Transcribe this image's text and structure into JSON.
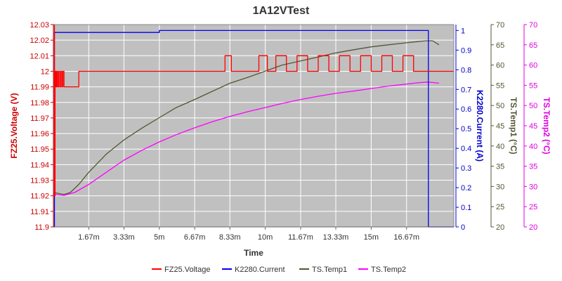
{
  "chart_data": {
    "type": "line",
    "title": "1A12VTest",
    "xlabel": "Time",
    "x_ticks": [
      "1.67m",
      "3.33m",
      "5m",
      "6.67m",
      "8.33m",
      "10m",
      "11.67m",
      "13.33m",
      "15m",
      "16.67m"
    ],
    "x_tick_values": [
      1.67,
      3.33,
      5,
      6.67,
      8.33,
      10,
      11.67,
      13.33,
      15,
      16.67
    ],
    "xlim": [
      0,
      18.9
    ],
    "grid": true,
    "legend_placement": "bottom",
    "plot_background": "#c0c0c0",
    "axes": {
      "voltage": {
        "label": "FZ25.Voltage (V)",
        "side": "left",
        "color": "#cc0000",
        "ylim": [
          11.9,
          12.03
        ],
        "ticks": [
          "11.9",
          "11.91",
          "11.92",
          "11.93",
          "11.94",
          "11.95",
          "11.96",
          "11.97",
          "11.98",
          "11.99",
          "12",
          "12.01",
          "12.02",
          "12.03"
        ],
        "tick_values": [
          11.9,
          11.91,
          11.92,
          11.93,
          11.94,
          11.95,
          11.96,
          11.97,
          11.98,
          11.99,
          12.0,
          12.01,
          12.02,
          12.03
        ]
      },
      "current": {
        "label": "K2280.Current (A)",
        "side": "right",
        "color": "#0000cc",
        "ylim": [
          0,
          1.03
        ],
        "ticks": [
          "0",
          "0.1",
          "0.2",
          "0.3",
          "0.4",
          "0.5",
          "0.6",
          "0.7",
          "0.8",
          "0.9",
          "1"
        ],
        "tick_values": [
          0,
          0.1,
          0.2,
          0.3,
          0.4,
          0.5,
          0.6,
          0.7,
          0.8,
          0.9,
          1.0
        ]
      },
      "temp1": {
        "label": "TS.Temp1 (°C)",
        "side": "right",
        "color": "#555533",
        "ylim": [
          20,
          70
        ],
        "ticks": [
          "20",
          "25",
          "30",
          "35",
          "40",
          "45",
          "50",
          "55",
          "60",
          "65",
          "70"
        ],
        "tick_values": [
          20,
          25,
          30,
          35,
          40,
          45,
          50,
          55,
          60,
          65,
          70
        ]
      },
      "temp2": {
        "label": "TS.Temp2 (°C)",
        "side": "right",
        "color": "#e000e0",
        "ylim": [
          20,
          70
        ],
        "ticks": [
          "20",
          "25",
          "30",
          "35",
          "40",
          "45",
          "50",
          "55",
          "60",
          "65",
          "70"
        ],
        "tick_values": [
          20,
          25,
          30,
          35,
          40,
          45,
          50,
          55,
          60,
          65,
          70
        ]
      }
    },
    "series": [
      {
        "name": "FZ25.Voltage",
        "axis": "voltage",
        "color": "#ff0000",
        "x": [
          0,
          0.05,
          0.05,
          0.08,
          0.08,
          0.12,
          0.12,
          0.16,
          0.16,
          0.2,
          0.2,
          0.25,
          0.25,
          0.3,
          0.3,
          0.35,
          0.35,
          0.4,
          0.4,
          0.45,
          0.45,
          0.5,
          0.5,
          0.55,
          0.55,
          0.6,
          0.6,
          0.65,
          0.65,
          0.7,
          0.7,
          0.75,
          0.75,
          0.8,
          0.8,
          0.85,
          0.85,
          0.9,
          0.9,
          0.95,
          0.95,
          1.0,
          1.0,
          1.05,
          1.05,
          1.1,
          1.1,
          1.2,
          1.2,
          1.3,
          1.3,
          3.4,
          3.4,
          4.2,
          4.2,
          8.1,
          8.1,
          8.4,
          8.4,
          9.7,
          9.7,
          10.1,
          10.1,
          10.5,
          10.5,
          11.0,
          11.0,
          11.5,
          11.5,
          12.0,
          12.0,
          12.5,
          12.5,
          13.0,
          13.0,
          13.5,
          13.5,
          14.0,
          14.0,
          14.5,
          14.5,
          15.0,
          15.0,
          15.5,
          15.5,
          16.0,
          16.0,
          16.5,
          16.5,
          17.0,
          17.0,
          17.5,
          17.5,
          18.9
        ],
        "y": [
          12.03,
          12.03,
          11.92,
          11.92,
          12.0,
          12.0,
          11.99,
          11.99,
          12.0,
          12.0,
          11.99,
          11.99,
          12.0,
          12.0,
          11.99,
          11.99,
          12.0,
          12.0,
          11.99,
          11.99,
          12.0,
          12.0,
          11.99,
          11.99,
          11.99,
          11.99,
          11.99,
          11.99,
          11.99,
          11.99,
          11.99,
          11.99,
          11.99,
          11.99,
          11.99,
          11.99,
          11.99,
          11.99,
          11.99,
          11.99,
          11.99,
          11.99,
          11.99,
          11.99,
          11.99,
          11.99,
          11.99,
          11.99,
          12.0,
          12.0,
          12.0,
          12.0,
          12.0,
          12.0,
          12.0,
          12.0,
          12.01,
          12.01,
          12.0,
          12.0,
          12.01,
          12.01,
          12.0,
          12.0,
          12.01,
          12.01,
          12.0,
          12.0,
          12.01,
          12.01,
          12.0,
          12.0,
          12.01,
          12.01,
          12.0,
          12.0,
          12.01,
          12.01,
          12.0,
          12.0,
          12.01,
          12.01,
          12.0,
          12.0,
          12.01,
          12.01,
          12.0,
          12.0,
          12.01,
          12.01,
          12.0,
          12.0,
          12.0,
          12.0
        ]
      },
      {
        "name": "K2280.Current",
        "axis": "current",
        "color": "#0000ee",
        "x": [
          0,
          0.05,
          0.05,
          0.1,
          0.1,
          0.3,
          0.3,
          1.0,
          1.0,
          2.0,
          2.0,
          3.4,
          3.4,
          5.0,
          5.0,
          6.67,
          6.67,
          8.0,
          8.0,
          11.0,
          11.0,
          14.0,
          14.0,
          17.7,
          17.7,
          18.9
        ],
        "y": [
          0,
          0,
          0.99,
          0.99,
          0.99,
          0.99,
          0.99,
          0.99,
          0.99,
          0.99,
          0.99,
          0.99,
          0.99,
          0.99,
          1.0,
          1.0,
          1.0,
          1.0,
          1.0,
          1.0,
          1.0,
          1.0,
          1.0,
          1.0,
          0,
          0
        ]
      },
      {
        "name": "TS.Temp1",
        "axis": "temp1",
        "color": "#555533",
        "x": [
          0,
          0.5,
          0.8,
          1.2,
          1.67,
          2.5,
          3.33,
          4.2,
          5.0,
          5.8,
          6.67,
          7.5,
          8.33,
          9.2,
          10.0,
          10.8,
          11.67,
          12.5,
          13.33,
          14.2,
          15.0,
          15.8,
          16.67,
          17.2,
          17.6,
          17.9,
          18.2
        ],
        "y": [
          28.5,
          28.0,
          28.5,
          30.5,
          33.5,
          38.0,
          41.5,
          44.5,
          47.0,
          49.5,
          51.5,
          53.5,
          55.5,
          57.0,
          58.5,
          60.0,
          61.0,
          62.0,
          63.0,
          63.8,
          64.5,
          65.0,
          65.5,
          65.8,
          66.0,
          66.0,
          65.0
        ]
      },
      {
        "name": "TS.Temp2",
        "axis": "temp2",
        "color": "#ff00ff",
        "x": [
          0,
          0.5,
          1.0,
          1.67,
          2.5,
          3.33,
          4.2,
          5.0,
          5.8,
          6.67,
          7.5,
          8.33,
          9.2,
          10.0,
          10.8,
          11.67,
          12.5,
          13.33,
          14.2,
          15.0,
          15.8,
          16.67,
          17.2,
          17.6,
          17.9,
          18.2
        ],
        "y": [
          28.0,
          27.8,
          28.5,
          30.5,
          33.5,
          36.5,
          39.0,
          41.0,
          42.8,
          44.5,
          46.0,
          47.3,
          48.5,
          49.5,
          50.5,
          51.5,
          52.3,
          53.0,
          53.6,
          54.2,
          54.8,
          55.3,
          55.6,
          55.8,
          55.7,
          55.5
        ]
      }
    ]
  }
}
